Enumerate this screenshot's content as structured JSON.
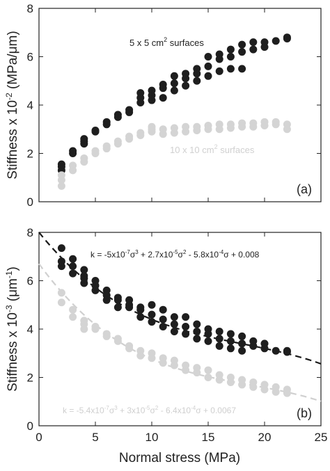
{
  "colors": {
    "dark": "#1e1e1e",
    "light": "#d4d4d4",
    "fit_dark": "#1a1a1a",
    "fit_light": "#d0d0d0",
    "axis": "#222222"
  },
  "chart_data": [
    {
      "type": "scatter",
      "panel_label": "(a)",
      "ylabel_parts": {
        "prefix": "Stiffness x 10",
        "exp": "-2",
        "suffix": " (MPa/",
        "unit_greek": "μ",
        "unit_tail": "m)"
      },
      "xlim": [
        0,
        25
      ],
      "ylim": [
        0,
        8
      ],
      "xticks": [
        0,
        5,
        10,
        15,
        20,
        25
      ],
      "yticks": [
        0,
        2,
        4,
        6,
        8
      ],
      "grid": false,
      "series": [
        {
          "name_parts": {
            "prefix": "5 x 5 cm",
            "exp": "2",
            "suffix": " surfaces"
          },
          "color": "#1e1e1e",
          "x": [
            2,
            2,
            2,
            3,
            3,
            4,
            4,
            4,
            5,
            5,
            6,
            6,
            7,
            7,
            8,
            8,
            9,
            9,
            9,
            10,
            10,
            10,
            11,
            11,
            11,
            12,
            12,
            12,
            13,
            13,
            13,
            14,
            14,
            14,
            15,
            15,
            15,
            16,
            16,
            16,
            17,
            17,
            17,
            18,
            18,
            18,
            19,
            19,
            20,
            20,
            21,
            22,
            22
          ],
          "y": [
            1.3,
            1.45,
            1.55,
            2.0,
            2.1,
            2.4,
            2.5,
            2.6,
            2.9,
            2.95,
            3.2,
            3.3,
            3.5,
            3.6,
            3.7,
            3.8,
            4.1,
            4.3,
            4.5,
            4.2,
            4.4,
            4.6,
            4.3,
            4.7,
            4.85,
            4.6,
            4.9,
            5.2,
            4.8,
            5.1,
            5.3,
            5.0,
            5.3,
            5.5,
            5.2,
            5.6,
            6.0,
            5.4,
            5.9,
            6.1,
            5.5,
            6.0,
            6.3,
            5.5,
            6.2,
            6.5,
            6.3,
            6.6,
            6.4,
            6.6,
            6.65,
            6.75,
            6.8
          ]
        },
        {
          "name_parts": {
            "prefix": "10 x 10 cm",
            "exp": "2",
            "suffix": " surfaces"
          },
          "color": "#d4d4d4",
          "x": [
            2,
            2,
            2,
            3,
            3,
            4,
            4,
            5,
            5,
            6,
            6,
            7,
            7,
            8,
            8,
            9,
            9,
            10,
            10,
            10,
            11,
            11,
            12,
            12,
            13,
            13,
            14,
            14,
            15,
            15,
            16,
            16,
            17,
            17,
            18,
            18,
            19,
            19,
            20,
            20,
            21,
            21,
            22,
            22
          ],
          "y": [
            0.65,
            0.9,
            1.1,
            1.3,
            1.5,
            1.65,
            1.8,
            2.0,
            2.1,
            2.2,
            2.3,
            2.4,
            2.5,
            2.6,
            2.7,
            2.75,
            2.85,
            2.9,
            3.0,
            3.1,
            2.8,
            3.0,
            2.85,
            3.05,
            2.9,
            3.1,
            2.95,
            3.1,
            3.0,
            3.15,
            3.0,
            3.2,
            3.05,
            3.2,
            3.1,
            3.25,
            3.1,
            3.25,
            3.15,
            3.3,
            3.2,
            3.3,
            3.0,
            3.2
          ]
        }
      ]
    },
    {
      "type": "scatter",
      "panel_label": "(b)",
      "ylabel_parts": {
        "prefix": "Stiffness x 10",
        "exp": "-3",
        "suffix": " (",
        "unit_greek": "μ",
        "unit_tail": "m",
        "unit_exp": "-1",
        "close": ")"
      },
      "xlabel": "Normal stress (MPa)",
      "xlim": [
        0,
        25
      ],
      "ylim": [
        0,
        8
      ],
      "xticks": [
        0,
        5,
        10,
        15,
        20,
        25
      ],
      "yticks": [
        0,
        2,
        4,
        6,
        8
      ],
      "grid": false,
      "series": [
        {
          "color": "#1e1e1e",
          "x": [
            2,
            2,
            2,
            3,
            3,
            3,
            4,
            4,
            4,
            4,
            5,
            5,
            5,
            6,
            6,
            6,
            7,
            7,
            7,
            8,
            8,
            8,
            9,
            9,
            9,
            10,
            10,
            10,
            11,
            11,
            11,
            12,
            12,
            12,
            13,
            13,
            13,
            14,
            14,
            14,
            15,
            15,
            15,
            16,
            16,
            16,
            17,
            17,
            17,
            18,
            18,
            18,
            19,
            19,
            20,
            20,
            21,
            22,
            22
          ],
          "y": [
            6.6,
            6.8,
            7.35,
            6.3,
            6.6,
            6.9,
            5.9,
            6.1,
            6.2,
            6.45,
            5.6,
            5.8,
            6.0,
            5.2,
            5.4,
            5.6,
            4.9,
            5.2,
            5.3,
            4.9,
            5.0,
            5.2,
            4.5,
            4.8,
            4.9,
            4.3,
            4.6,
            5.0,
            4.1,
            4.4,
            4.8,
            3.9,
            4.2,
            4.5,
            3.8,
            4.1,
            4.5,
            3.6,
            3.9,
            4.2,
            3.5,
            3.8,
            4.0,
            3.3,
            3.6,
            3.9,
            3.2,
            3.5,
            3.8,
            3.1,
            3.4,
            3.7,
            3.3,
            3.5,
            3.2,
            3.4,
            3.1,
            3.05,
            3.1
          ]
        },
        {
          "color": "#d4d4d4",
          "x": [
            2,
            2,
            3,
            3,
            4,
            4,
            4,
            5,
            5,
            6,
            6,
            7,
            7,
            8,
            8,
            9,
            9,
            10,
            10,
            11,
            11,
            12,
            12,
            13,
            13,
            14,
            14,
            15,
            15,
            16,
            16,
            17,
            17,
            18,
            18,
            19,
            19,
            20,
            20,
            21,
            21,
            22,
            22
          ],
          "y": [
            5.1,
            5.5,
            4.5,
            4.8,
            4.0,
            4.2,
            4.35,
            4.0,
            4.1,
            3.7,
            3.8,
            3.5,
            3.6,
            3.2,
            3.3,
            2.9,
            3.1,
            2.8,
            3.0,
            2.6,
            2.8,
            2.5,
            2.7,
            2.3,
            2.5,
            2.2,
            2.4,
            2.0,
            2.3,
            1.9,
            2.1,
            1.8,
            2.0,
            1.7,
            1.9,
            1.6,
            1.8,
            1.5,
            1.7,
            1.4,
            1.6,
            1.35,
            1.5
          ]
        }
      ],
      "fits": [
        {
          "color": "#1a1a1a",
          "coeffs": [
            -5e-07,
            2.7e-05,
            -0.00058,
            0.008
          ],
          "x_range": [
            0,
            25
          ],
          "eq_parts": {
            "a": "k = -5x10",
            "a_exp": "-7",
            "b": " + 2.7x10",
            "b_exp": "-5",
            "c": " - 5.8x10",
            "c_exp": "-4",
            "d": " + 0.008"
          }
        },
        {
          "color": "#d0d0d0",
          "coeffs": [
            -5.4e-07,
            3e-05,
            -0.00064,
            0.0067
          ],
          "x_range": [
            0,
            25
          ],
          "eq_parts": {
            "a": "k = -5.4x10",
            "a_exp": "-7",
            "b": " + 3x10",
            "b_exp": "-5",
            "c": " - 6.4x10",
            "c_exp": "-4",
            "d": " + 0.0067"
          }
        }
      ],
      "sigma_symbol": "σ",
      "sq_exp": "2",
      "cube_exp": "3"
    }
  ]
}
